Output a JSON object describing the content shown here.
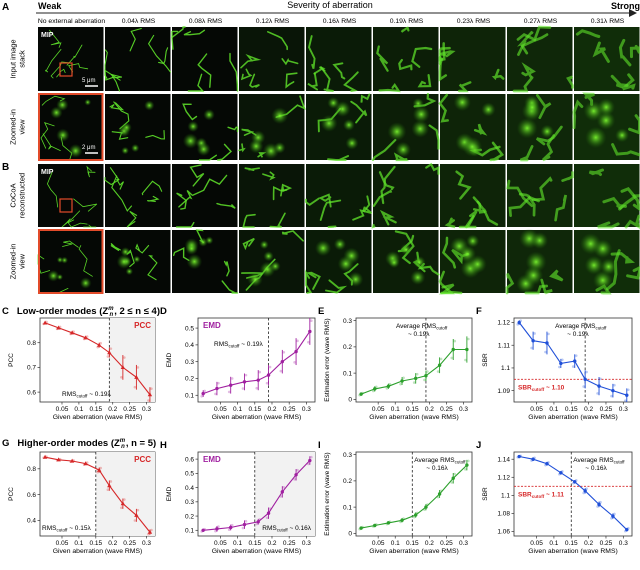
{
  "header": {
    "panel_a": "A",
    "weak": "Weak",
    "severity": "Severity of aberration",
    "strong": "Strong"
  },
  "columns": [
    "No external aberration",
    "0.04λ RMS",
    "0.08λ RMS",
    "0.12λ RMS",
    "0.16λ RMS",
    "0.19λ RMS",
    "0.23λ RMS",
    "0.27λ RMS",
    "0.31λ RMS"
  ],
  "rows": {
    "r1": [
      "Input image",
      "stack"
    ],
    "r2": [
      "Zoomed-in",
      "view"
    ],
    "r3": [
      "CoCoA",
      "reconstructed"
    ],
    "r4": [
      "Zoomed-in",
      "view"
    ]
  },
  "image_labels": {
    "mip": "MIP",
    "scale_a": "5 μm",
    "scale_zoom": "2 μm",
    "panel_b": "B"
  },
  "sections": {
    "low_letter": "C",
    "low_title": "Low-order modes (Z",
    "low_math": "m",
    "low_cond": "n",
    "low_tail": ", 2 ≤ n ≤ 4)",
    "high_letter": "G",
    "high_title": "Higher-order modes (Z",
    "high_math": "m",
    "high_cond": "n",
    "high_tail": ", n = 5)"
  },
  "colors": {
    "pcc": "#d62728",
    "emd": "#a020a0",
    "err": "#2ca02c",
    "sbr": "#1f4fd8",
    "cutoff_line": "#222222",
    "sbr_line": "#d62728",
    "micro_bg": "#000000",
    "micro_fg": "#4ade20",
    "highlight_box": "#e24b2a"
  },
  "chart_data": [
    {
      "type": "line",
      "letter": "C",
      "badge": "PCC",
      "ylabel": "PCC",
      "xlabel": "Given aberration (wave RMS)",
      "x": [
        0.0,
        0.04,
        0.08,
        0.12,
        0.16,
        0.19,
        0.23,
        0.27,
        0.31
      ],
      "y": [
        0.88,
        0.86,
        0.84,
        0.82,
        0.79,
        0.76,
        0.7,
        0.66,
        0.59
      ],
      "err": [
        0.005,
        0.005,
        0.006,
        0.006,
        0.01,
        0.02,
        0.05,
        0.05,
        0.03
      ],
      "xticks": [
        "0.05",
        "0.1",
        "0.15",
        "0.2",
        "0.25",
        "0.3"
      ],
      "yticks": [
        "0.6",
        "0.7",
        "0.8"
      ],
      "ylim": [
        0.56,
        0.9
      ],
      "cutoff": 0.19,
      "anno": "RMS",
      "anno_sub": "cutoff",
      "anno_tail": " ~ 0.19λ",
      "shaded": true
    },
    {
      "type": "line",
      "letter": "D",
      "badge": "EMD",
      "ylabel": "EMD",
      "xlabel": "Given aberration (wave RMS)",
      "x": [
        0.0,
        0.04,
        0.08,
        0.12,
        0.16,
        0.19,
        0.23,
        0.27,
        0.31
      ],
      "y": [
        0.11,
        0.14,
        0.16,
        0.18,
        0.19,
        0.22,
        0.3,
        0.36,
        0.48
      ],
      "err": [
        0.02,
        0.04,
        0.05,
        0.05,
        0.06,
        0.06,
        0.07,
        0.08,
        0.08
      ],
      "xticks": [
        "0.05",
        "0.1",
        "0.15",
        "0.2",
        "0.25",
        "0.3"
      ],
      "yticks": [
        "0.1",
        "0.2",
        "0.3",
        "0.4",
        "0.5"
      ],
      "ylim": [
        0.06,
        0.56
      ],
      "cutoff": 0.19,
      "anno": "RMS",
      "anno_sub": "cutoff",
      "anno_tail": " ~ 0.19λ",
      "shaded": false
    },
    {
      "type": "line",
      "letter": "E",
      "badge": "",
      "ylabel": "Estimation error (wave RMS)",
      "xlabel": "Given aberration (wave RMS)",
      "x": [
        0.0,
        0.04,
        0.08,
        0.12,
        0.16,
        0.19,
        0.23,
        0.27,
        0.31
      ],
      "y": [
        0.02,
        0.04,
        0.05,
        0.07,
        0.08,
        0.09,
        0.13,
        0.19,
        0.19
      ],
      "err": [
        0.005,
        0.01,
        0.01,
        0.015,
        0.02,
        0.02,
        0.03,
        0.04,
        0.05
      ],
      "xticks": [
        "0.05",
        "0.1",
        "0.15",
        "0.2",
        "0.25",
        "0.3"
      ],
      "yticks": [
        "0",
        "0.1",
        "0.2",
        "0.3"
      ],
      "ylim": [
        -0.01,
        0.31
      ],
      "cutoff": 0.19,
      "anno": "Average RMS",
      "anno_sub": "cutoff",
      "anno_tail": "",
      "anno2": "~ 0.19λ",
      "shaded": false
    },
    {
      "type": "line",
      "letter": "F",
      "badge": "",
      "ylabel": "SBR",
      "xlabel": "Given aberration (wave RMS)",
      "x": [
        0.0,
        0.04,
        0.08,
        0.12,
        0.16,
        0.19,
        0.23,
        0.27,
        0.31
      ],
      "y": [
        1.12,
        1.112,
        1.111,
        1.102,
        1.103,
        1.095,
        1.092,
        1.09,
        1.088
      ],
      "err": [
        0.001,
        0.004,
        0.005,
        0.002,
        0.003,
        0.004,
        0.004,
        0.003,
        0.003
      ],
      "xticks": [
        "0.05",
        "0.1",
        "0.15",
        "0.2",
        "0.25",
        "0.3"
      ],
      "yticks": [
        "1.09",
        "1.1",
        "1.11",
        "1.12"
      ],
      "ylim": [
        1.085,
        1.122
      ],
      "cutoff": 0.19,
      "anno": "Average RMS",
      "anno_sub": "cutoff",
      "anno_tail": "",
      "anno2": "~ 0.19λ",
      "hline": 1.095,
      "hlabel": "SBR",
      "hlabel_sub": "cutoff",
      "hlabel_tail": " ~ 1.10",
      "shaded": false
    },
    {
      "type": "line",
      "letter": "G",
      "badge": "PCC",
      "ylabel": "PCC",
      "xlabel": "Given aberration (wave RMS)",
      "x": [
        0.0,
        0.04,
        0.08,
        0.12,
        0.16,
        0.19,
        0.23,
        0.27,
        0.31
      ],
      "y": [
        0.89,
        0.87,
        0.86,
        0.84,
        0.79,
        0.67,
        0.53,
        0.44,
        0.31
      ],
      "err": [
        0.005,
        0.005,
        0.006,
        0.01,
        0.02,
        0.04,
        0.04,
        0.05,
        0.02
      ],
      "xticks": [
        "0.05",
        "0.1",
        "0.15",
        "0.2",
        "0.25",
        "0.3"
      ],
      "yticks": [
        "0.4",
        "0.6",
        "0.8"
      ],
      "ylim": [
        0.28,
        0.93
      ],
      "cutoff": 0.15,
      "anno": "RMS",
      "anno_sub": "cutoff",
      "anno_tail": " ~ 0.15λ",
      "shaded": true
    },
    {
      "type": "line",
      "letter": "H",
      "badge": "EMD",
      "ylabel": "EMD",
      "xlabel": "Given aberration (wave RMS)",
      "x": [
        0.0,
        0.04,
        0.08,
        0.12,
        0.16,
        0.19,
        0.23,
        0.27,
        0.31
      ],
      "y": [
        0.1,
        0.11,
        0.12,
        0.14,
        0.16,
        0.22,
        0.37,
        0.49,
        0.59
      ],
      "err": [
        0.01,
        0.02,
        0.02,
        0.03,
        0.02,
        0.04,
        0.04,
        0.04,
        0.03
      ],
      "xticks": [
        "0.05",
        "0.1",
        "0.15",
        "0.2",
        "0.25",
        "0.3"
      ],
      "yticks": [
        "0.1",
        "0.2",
        "0.3",
        "0.4",
        "0.5",
        "0.6"
      ],
      "ylim": [
        0.06,
        0.65
      ],
      "cutoff": 0.15,
      "anno": "RMS",
      "anno_sub": "cutoff",
      "anno_tail": " ~ 0.16λ",
      "shaded": true
    },
    {
      "type": "line",
      "letter": "I",
      "badge": "",
      "ylabel": "Estimation error (wave RMS)",
      "xlabel": "Given aberration (wave RMS)",
      "x": [
        0.0,
        0.04,
        0.08,
        0.12,
        0.16,
        0.19,
        0.23,
        0.27,
        0.31
      ],
      "y": [
        0.02,
        0.03,
        0.04,
        0.05,
        0.07,
        0.1,
        0.15,
        0.21,
        0.26
      ],
      "err": [
        0.005,
        0.005,
        0.006,
        0.008,
        0.01,
        0.012,
        0.015,
        0.02,
        0.02
      ],
      "xticks": [
        "0.05",
        "0.1",
        "0.15",
        "0.2",
        "0.25",
        "0.3"
      ],
      "yticks": [
        "0",
        "0.1",
        "0.2",
        "0.3"
      ],
      "ylim": [
        -0.01,
        0.31
      ],
      "cutoff": 0.15,
      "anno": "Average RMS",
      "anno_sub": "cutoff",
      "anno_tail": "",
      "anno2": "~ 0.16λ",
      "shaded": false
    },
    {
      "type": "line",
      "letter": "J",
      "badge": "",
      "ylabel": "SBR",
      "xlabel": "Given aberration (wave RMS)",
      "x": [
        0.0,
        0.04,
        0.08,
        0.12,
        0.16,
        0.19,
        0.23,
        0.27,
        0.31
      ],
      "y": [
        1.143,
        1.14,
        1.135,
        1.125,
        1.115,
        1.105,
        1.09,
        1.077,
        1.062
      ],
      "err": [
        0.001,
        0.002,
        0.002,
        0.002,
        0.002,
        0.003,
        0.003,
        0.003,
        0.002
      ],
      "xticks": [
        "0.05",
        "0.1",
        "0.15",
        "0.2",
        "0.25",
        "0.3"
      ],
      "yticks": [
        "1.06",
        "1.08",
        "1.1",
        "1.12",
        "1.14"
      ],
      "ylim": [
        1.055,
        1.148
      ],
      "cutoff": 0.15,
      "anno": "Average RMS",
      "anno_sub": "cutoff",
      "anno_tail": "",
      "anno2": "~ 0.16λ",
      "hline": 1.11,
      "hlabel": "SBR",
      "hlabel_sub": "cutoff",
      "hlabel_tail": " ~ 1.11",
      "shaded": false
    }
  ]
}
